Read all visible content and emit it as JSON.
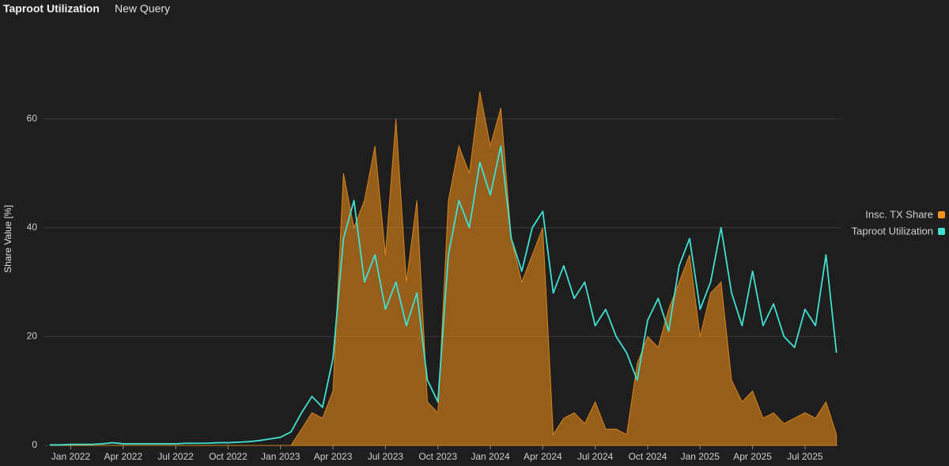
{
  "header": {
    "title": "Taproot Utilization",
    "tab": "New Query"
  },
  "chart_data": {
    "type": "line",
    "y_label": "Share Value [%]",
    "x": [
      2021.9,
      2021.95,
      2022,
      2022.05,
      2022.1,
      2022.15,
      2022.2,
      2022.25,
      2022.3,
      2022.35,
      2022.4,
      2022.45,
      2022.5,
      2022.55,
      2022.6,
      2022.65,
      2022.7,
      2022.75,
      2022.8,
      2022.85,
      2022.9,
      2022.95,
      2023,
      2023.05,
      2023.1,
      2023.15,
      2023.2,
      2023.25,
      2023.3,
      2023.35,
      2023.4,
      2023.45,
      2023.5,
      2023.55,
      2023.6,
      2023.65,
      2023.7,
      2023.75,
      2023.8,
      2023.85,
      2023.9,
      2023.95,
      2024,
      2024.05,
      2024.1,
      2024.15,
      2024.2,
      2024.25,
      2024.3,
      2024.35,
      2024.4,
      2024.45,
      2024.5,
      2024.55,
      2024.6,
      2024.65,
      2024.7,
      2024.75,
      2024.8,
      2024.85,
      2024.9,
      2024.95,
      2025,
      2025.05,
      2025.1,
      2025.15,
      2025.2,
      2025.25,
      2025.3,
      2025.35,
      2025.4,
      2025.45,
      2025.5,
      2025.55,
      2025.6,
      2025.65
    ],
    "series": [
      {
        "name": "Insc. TX Share",
        "color": "#f7931a",
        "style": "area",
        "values": [
          0,
          0,
          0,
          0,
          0,
          0,
          0,
          0,
          0,
          0,
          0,
          0,
          0,
          0,
          0,
          0,
          0,
          0,
          0,
          0,
          0,
          0,
          0,
          0,
          3,
          6,
          5,
          10,
          50,
          40,
          45,
          55,
          35,
          60,
          30,
          45,
          8,
          6,
          45,
          55,
          50,
          65,
          55,
          62,
          38,
          30,
          35,
          40,
          2,
          5,
          6,
          4,
          8,
          3,
          3,
          2,
          15,
          20,
          18,
          25,
          30,
          35,
          20,
          28,
          30,
          12,
          8,
          10,
          5,
          6,
          4,
          5,
          6,
          5,
          8,
          2
        ]
      },
      {
        "name": "Taproot Utilization",
        "color": "#40e0d0",
        "style": "line",
        "values": [
          0.1,
          0.1,
          0.2,
          0.2,
          0.2,
          0.3,
          0.5,
          0.3,
          0.3,
          0.3,
          0.3,
          0.3,
          0.3,
          0.4,
          0.4,
          0.4,
          0.5,
          0.5,
          0.6,
          0.7,
          0.9,
          1.2,
          1.5,
          2.5,
          6,
          9,
          7,
          16,
          38,
          45,
          30,
          35,
          25,
          30,
          22,
          28,
          12,
          8,
          35,
          45,
          40,
          52,
          46,
          55,
          38,
          32,
          40,
          43,
          28,
          33,
          27,
          30,
          22,
          25,
          20,
          17,
          12,
          23,
          27,
          21,
          33,
          38,
          25,
          30,
          40,
          28,
          22,
          32,
          22,
          26,
          20,
          18,
          25,
          22,
          35,
          17
        ]
      }
    ],
    "xlim": [
      2021.87,
      2025.67
    ],
    "xticks": [
      {
        "value": 2022,
        "label": "Jan 2022"
      },
      {
        "value": 2022.25,
        "label": "Apr 2022"
      },
      {
        "value": 2022.5,
        "label": "Jul 2022"
      },
      {
        "value": 2022.75,
        "label": "Oct 2022"
      },
      {
        "value": 2023,
        "label": "Jan 2023"
      },
      {
        "value": 2023.25,
        "label": "Apr 2023"
      },
      {
        "value": 2023.5,
        "label": "Jul 2023"
      },
      {
        "value": 2023.75,
        "label": "Oct 2023"
      },
      {
        "value": 2024,
        "label": "Jan 2024"
      },
      {
        "value": 2024.25,
        "label": "Apr 2024"
      },
      {
        "value": 2024.5,
        "label": "Jul 2024"
      },
      {
        "value": 2024.75,
        "label": "Oct 2024"
      },
      {
        "value": 2025,
        "label": "Jan 2025"
      },
      {
        "value": 2025.25,
        "label": "Apr 2025"
      },
      {
        "value": 2025.5,
        "label": "Jul 2025"
      }
    ],
    "ylim": [
      0,
      76
    ],
    "yticks": [
      0,
      20,
      40,
      60
    ],
    "grid": true,
    "legend": "right"
  }
}
